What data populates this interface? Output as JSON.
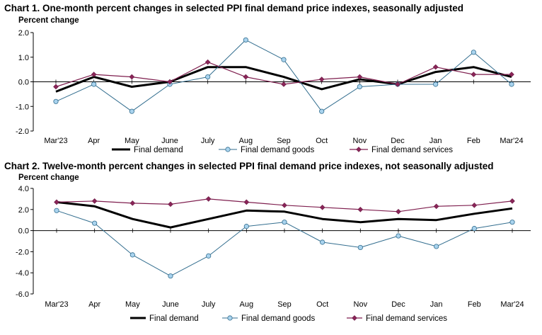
{
  "chart_data": [
    {
      "type": "line",
      "title": "Chart 1. One-month percent changes in selected PPI final demand price indexes, seasonally adjusted",
      "ylabel": "Percent change",
      "xlabel": "",
      "ylim": [
        -2.0,
        2.0
      ],
      "yticks": [
        2.0,
        1.0,
        0.0,
        -1.0,
        -2.0
      ],
      "ytick_labels": [
        "2.0",
        "1.0",
        "0.0",
        "-1.0",
        "-2.0"
      ],
      "categories": [
        "Mar'23",
        "Apr",
        "May",
        "June",
        "July",
        "Aug",
        "Sep",
        "Oct",
        "Nov",
        "Dec",
        "Jan",
        "Feb",
        "Mar'24"
      ],
      "series": [
        {
          "name": "Final demand",
          "color": "#000000",
          "values": [
            -0.4,
            0.2,
            -0.2,
            0.0,
            0.6,
            0.6,
            0.2,
            -0.3,
            0.1,
            -0.1,
            0.4,
            0.6,
            0.2
          ]
        },
        {
          "name": "Final demand goods",
          "color": "#336e8f",
          "values": [
            -0.8,
            -0.1,
            -1.2,
            -0.1,
            0.2,
            1.7,
            0.9,
            -1.2,
            -0.2,
            -0.1,
            -0.1,
            1.2,
            -0.1
          ]
        },
        {
          "name": "Final demand services",
          "color": "#7f1f4f",
          "values": [
            -0.2,
            0.3,
            0.2,
            0.0,
            0.8,
            0.2,
            -0.1,
            0.1,
            0.2,
            -0.1,
            0.6,
            0.3,
            0.3
          ]
        }
      ],
      "legend": "bottom"
    },
    {
      "type": "line",
      "title": "Chart 2. Twelve-month percent changes in selected PPI final demand price indexes, not seasonally adjusted",
      "ylabel": "Percent change",
      "xlabel": "",
      "ylim": [
        -6.0,
        4.0
      ],
      "yticks": [
        4.0,
        2.0,
        0.0,
        -2.0,
        -4.0,
        -6.0
      ],
      "ytick_labels": [
        "4.0",
        "2.0",
        "0.0",
        "-2.0",
        "-4.0",
        "-6.0"
      ],
      "categories": [
        "Mar'23",
        "Apr",
        "May",
        "June",
        "July",
        "Aug",
        "Sep",
        "Oct",
        "Nov",
        "Dec",
        "Jan",
        "Feb",
        "Mar'24"
      ],
      "series": [
        {
          "name": "Final demand",
          "color": "#000000",
          "values": [
            2.7,
            2.3,
            1.1,
            0.3,
            1.1,
            1.9,
            1.8,
            1.1,
            0.8,
            1.1,
            1.0,
            1.6,
            2.1
          ]
        },
        {
          "name": "Final demand goods",
          "color": "#336e8f",
          "values": [
            1.9,
            0.7,
            -2.3,
            -4.3,
            -2.4,
            0.4,
            0.8,
            -1.1,
            -1.6,
            -0.5,
            -1.5,
            0.2,
            0.8
          ]
        },
        {
          "name": "Final demand services",
          "color": "#7f1f4f",
          "values": [
            2.7,
            2.8,
            2.6,
            2.5,
            3.0,
            2.7,
            2.4,
            2.2,
            2.0,
            1.8,
            2.3,
            2.4,
            2.8
          ]
        }
      ],
      "legend": "bottom"
    }
  ]
}
